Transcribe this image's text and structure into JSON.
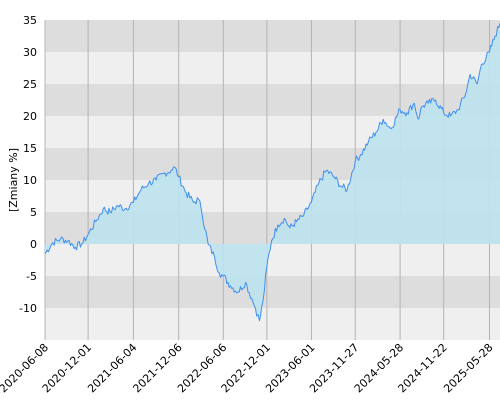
{
  "chart_data": {
    "type": "area",
    "title": "",
    "xlabel": "",
    "ylabel": "[Zmiany %]",
    "ylim": [
      -15,
      35
    ],
    "yticks": [
      35,
      30,
      25,
      20,
      15,
      10,
      5,
      0,
      -5,
      -10
    ],
    "xlim": [
      "2020-06-08",
      "2025-07-10"
    ],
    "xticks": [
      "2020-06-08",
      "2020-12-01",
      "2021-06-04",
      "2021-12-06",
      "2022-06-06",
      "2022-12-01",
      "2023-06-01",
      "2023-11-27",
      "2024-05-28",
      "2024-11-22",
      "2025-05-28"
    ],
    "grid": "alternating horizontal bands, vertical lines at x ticks",
    "series": [
      {
        "x": [
          "2020-06-08",
          "2020-07-10",
          "2020-08-10",
          "2020-09-10",
          "2020-10-10",
          "2020-11-10",
          "2020-12-01",
          "2021-01-01",
          "2021-02-01",
          "2021-03-01",
          "2021-04-01",
          "2021-05-01",
          "2021-06-04",
          "2021-07-05",
          "2021-08-05",
          "2021-09-05",
          "2021-10-05",
          "2021-11-05",
          "2021-11-20",
          "2021-12-06",
          "2022-01-05",
          "2022-02-05",
          "2022-02-25",
          "2022-03-08",
          "2022-04-05",
          "2022-05-01",
          "2022-05-20",
          "2022-06-06",
          "2022-07-05",
          "2022-08-05",
          "2022-09-05",
          "2022-09-30",
          "2022-10-15",
          "2022-11-01",
          "2022-11-15",
          "2022-12-01",
          "2022-12-20",
          "2023-01-15",
          "2023-02-10",
          "2023-03-05",
          "2023-04-01",
          "2023-05-01",
          "2023-06-01",
          "2023-07-01",
          "2023-08-01",
          "2023-09-01",
          "2023-10-01",
          "2023-10-25",
          "2023-11-27",
          "2023-12-20",
          "2024-01-20",
          "2024-02-20",
          "2024-03-20",
          "2024-04-20",
          "2024-05-28",
          "2024-06-25",
          "2024-07-25",
          "2024-08-10",
          "2024-08-25",
          "2024-09-20",
          "2024-10-20",
          "2024-11-22",
          "2024-12-20",
          "2025-01-20",
          "2025-02-20",
          "2025-03-10",
          "2025-04-08",
          "2025-04-25",
          "2025-05-28",
          "2025-06-20",
          "2025-07-10"
        ],
        "values": [
          -1.5,
          0.2,
          0.8,
          0.5,
          -0.5,
          0.2,
          1.5,
          3.5,
          5.5,
          5.0,
          6.0,
          5.5,
          6.5,
          8.5,
          9.5,
          10.0,
          11.0,
          11.5,
          12.0,
          10.5,
          8.0,
          6.5,
          7.0,
          5.5,
          0.0,
          -2.0,
          -4.5,
          -5.0,
          -6.5,
          -7.5,
          -6.0,
          -8.5,
          -10.0,
          -12.0,
          -9.0,
          -3.5,
          0.5,
          3.0,
          4.0,
          2.5,
          3.5,
          4.5,
          6.5,
          9.5,
          11.5,
          10.5,
          9.0,
          8.5,
          13.0,
          14.0,
          16.0,
          17.5,
          19.5,
          18.0,
          21.0,
          20.5,
          22.0,
          19.5,
          21.5,
          22.0,
          22.5,
          20.5,
          20.0,
          21.0,
          23.5,
          26.5,
          25.0,
          28.0,
          30.0,
          32.5,
          34.5
        ]
      }
    ],
    "colors": {
      "line": "#3f8ff0",
      "fill_positive": "#bde2ee",
      "fill_negative": "#b3dcf0",
      "band_dark": "#dddddd",
      "band_light": "#efefef",
      "vgrid": "#b4b4b4"
    }
  }
}
